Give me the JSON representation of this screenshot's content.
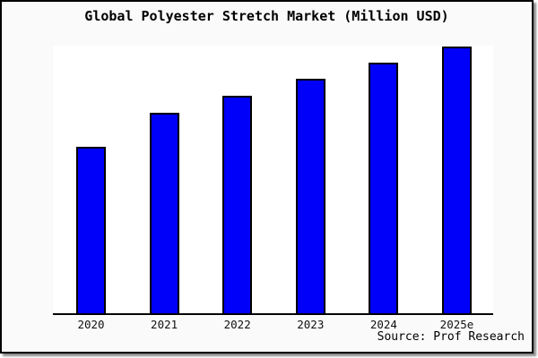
{
  "title": "Global Polyester Stretch Market (Million USD)",
  "source_note": "Source: Prof Research",
  "colors": {
    "bar_fill": "#0000fa",
    "bar_border": "#000000",
    "frame_background": "#fafafa",
    "plot_background": "#ffffff",
    "frame_border": "#000000"
  },
  "chart_data": {
    "type": "bar",
    "title": "Global Polyester Stretch Market (Million USD)",
    "categories": [
      "2020",
      "2021",
      "2022",
      "2023",
      "2024",
      "2025e"
    ],
    "values": [
      188,
      226,
      245,
      264,
      282,
      300
    ],
    "values_note": "relative bar heights; y-axis has no tick labels or gridlines in source image",
    "ylim": [
      0,
      300
    ],
    "xlabel": "",
    "ylabel": "",
    "grid": false,
    "legend": false,
    "source_annotation": "Source: Prof Research"
  }
}
